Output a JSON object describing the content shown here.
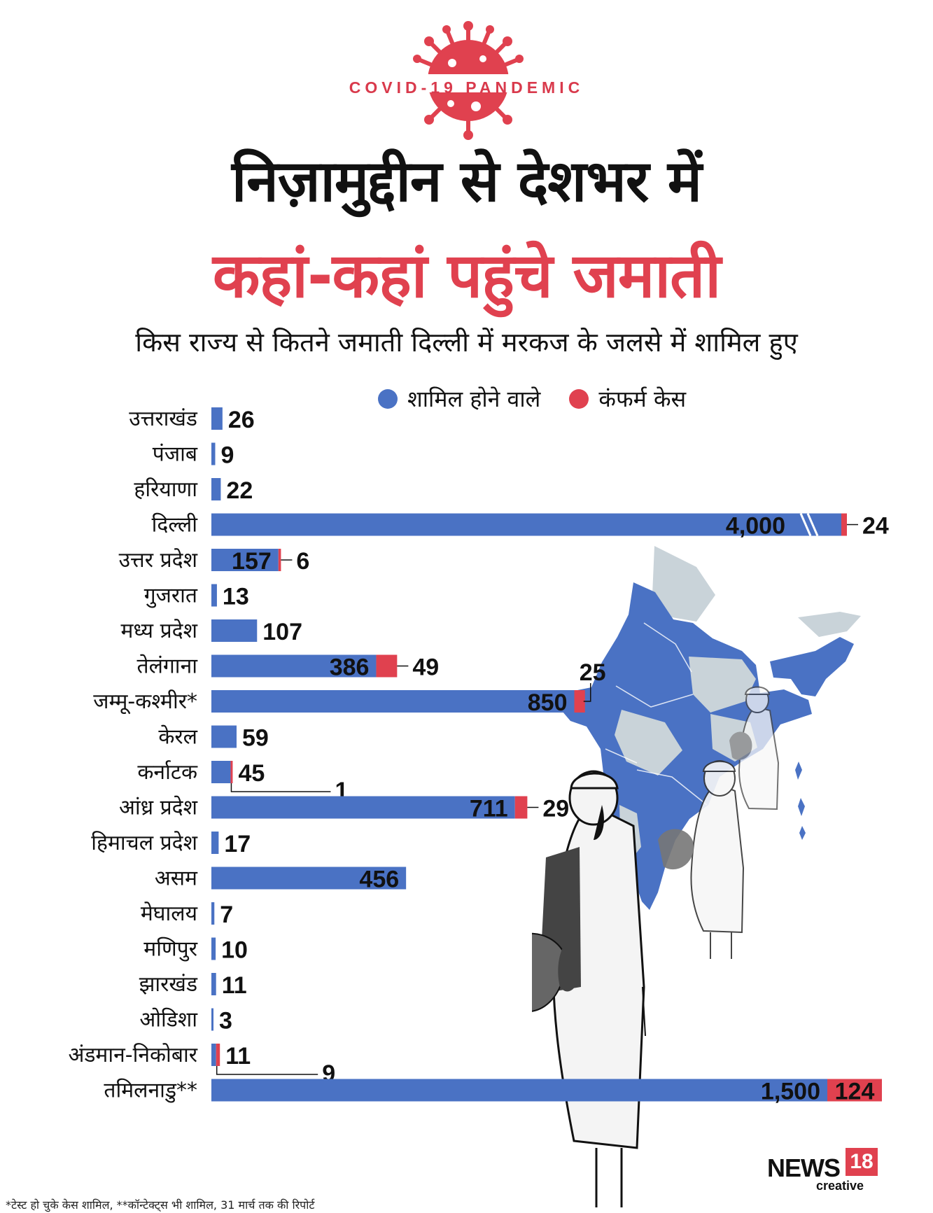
{
  "header": {
    "badge": "COVID-19 PANDEMIC",
    "title_line1": "निज़ामुद्दीन से देशभर में",
    "title_line2": "कहां-कहां पहुंचे जमाती",
    "subtitle": "किस राज्य से कितने जमाती दिल्ली में मरकज के जलसे में शामिल हुए"
  },
  "legend": {
    "attended_label": "शामिल होने वाले",
    "confirmed_label": "कंफर्म केस"
  },
  "colors": {
    "attended": "#4a72c4",
    "confirmed": "#e0414f",
    "map_highlight": "#4a72c4",
    "map_other": "#c9d3d9"
  },
  "chart_data": {
    "type": "bar",
    "orientation": "horizontal",
    "stacked": true,
    "categories": [
      "उत्तराखंड",
      "पंजाब",
      "हरियाणा",
      "दिल्ली",
      "उत्तर प्रदेश",
      "गुजरात",
      "मध्य प्रदेश",
      "तेलंगाना",
      "जम्मू-कश्मीर*",
      "केरल",
      "कर्नाटक",
      "आंध्र प्रदेश",
      "हिमाचल प्रदेश",
      "असम",
      "मेघालय",
      "मणिपुर",
      "झारखंड",
      "ओडिशा",
      "अंडमान-निकोबार",
      "तमिलनाडु**"
    ],
    "series": [
      {
        "name": "शामिल होने वाले",
        "values": [
          26,
          9,
          22,
          4000,
          157,
          13,
          107,
          386,
          850,
          59,
          45,
          711,
          17,
          456,
          7,
          10,
          11,
          3,
          11,
          1500
        ]
      },
      {
        "name": "कंफर्म केस",
        "values": [
          null,
          null,
          null,
          24,
          6,
          null,
          null,
          49,
          25,
          null,
          1,
          29,
          null,
          null,
          null,
          null,
          null,
          null,
          9,
          124
        ]
      }
    ],
    "value_labels": {
      "attended": [
        "26",
        "9",
        "22",
        "4,000",
        "157",
        "13",
        "107",
        "386",
        "850",
        "59",
        "45",
        "711",
        "17",
        "456",
        "7",
        "10",
        "11",
        "3",
        "11",
        "1,500"
      ],
      "confirmed": [
        "",
        "",
        "",
        "24",
        "6",
        "",
        "",
        "49",
        "25",
        "",
        "1",
        "29",
        "",
        "",
        "",
        "",
        "",
        "",
        "9",
        "124"
      ]
    },
    "broken_axis_rows": [
      "दिल्ली",
      "तमिलनाडु**"
    ],
    "legend_position": "top-center",
    "grid": false
  },
  "footnote": "*टेस्ट हो चुके केस शामिल, **कॉन्टेक्ट्स भी शामिल, 31 मार्च तक की रिपोर्ट",
  "brand": {
    "name": "NEWS",
    "number": "18",
    "sub": "creative"
  }
}
